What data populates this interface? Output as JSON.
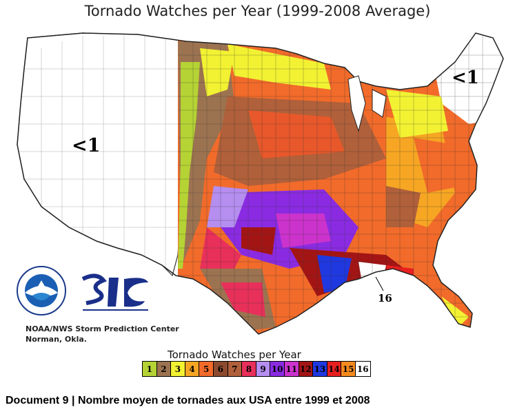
{
  "title": "Tornado Watches per Year (1999-2008 Average)",
  "map_labels": {
    "west": "<1",
    "northeast": "<1",
    "southeast_point": "16"
  },
  "credit": {
    "line1": "NOAA/NWS Storm Prediction Center",
    "line2": "Norman, Okla."
  },
  "legend": {
    "title": "Tornado Watches per Year",
    "items": [
      {
        "label": "1",
        "color": "#b5d334"
      },
      {
        "label": "2",
        "color": "#9c7350"
      },
      {
        "label": "3",
        "color": "#f2f233"
      },
      {
        "label": "4",
        "color": "#f7a623"
      },
      {
        "label": "5",
        "color": "#f26b2a"
      },
      {
        "label": "6",
        "color": "#8c4a2e"
      },
      {
        "label": "7",
        "color": "#b0603a"
      },
      {
        "label": "8",
        "color": "#e8305b"
      },
      {
        "label": "9",
        "color": "#b58ef0"
      },
      {
        "label": "10",
        "color": "#8a2be2"
      },
      {
        "label": "11",
        "color": "#cc33cc"
      },
      {
        "label": "12",
        "color": "#a31515"
      },
      {
        "label": "13",
        "color": "#2038e0"
      },
      {
        "label": "14",
        "color": "#e81f1f"
      },
      {
        "label": "15",
        "color": "#f58a1f"
      },
      {
        "label": "16",
        "color": "#ffffff"
      }
    ]
  },
  "caption": "Document 9 | Nombre moyen de tornades aux USA entre 1999 et 2008"
}
